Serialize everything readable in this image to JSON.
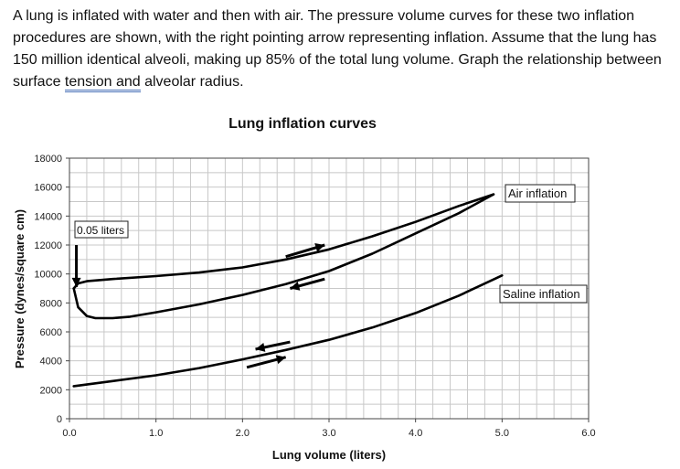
{
  "question": {
    "before": "A lung is inflated with water and then with air. The pressure volume curves for these two inflation procedures are shown, with the right pointing arrow representing inflation. Assume that the lung has 150 million identical alveoli, making up 85% of the total lung volume. Graph the relationship between surface ",
    "underlined": "tension  and",
    "after": " alveolar radius."
  },
  "chart_data": {
    "type": "line",
    "title": "Lung inflation curves",
    "xlabel": "Lung volume (liters)",
    "ylabel": "Pressure (dynes/square cm)",
    "xlim": [
      0,
      6
    ],
    "ylim": [
      0,
      18000
    ],
    "x_ticks": [
      "0.0",
      "1.0",
      "2.0",
      "3.0",
      "4.0",
      "5.0",
      "6.0"
    ],
    "y_ticks": [
      "0",
      "2000",
      "4000",
      "6000",
      "8000",
      "10000",
      "12000",
      "14000",
      "16000",
      "18000"
    ],
    "grid": true,
    "series": [
      {
        "name": "Air inflation",
        "segment": "inflation",
        "points": [
          [
            0.05,
            9000
          ],
          [
            0.1,
            9350
          ],
          [
            0.2,
            9500
          ],
          [
            0.5,
            9650
          ],
          [
            1.0,
            9850
          ],
          [
            1.5,
            10100
          ],
          [
            2.0,
            10450
          ],
          [
            2.5,
            11000
          ],
          [
            3.0,
            11700
          ],
          [
            3.5,
            12600
          ],
          [
            4.0,
            13600
          ],
          [
            4.5,
            14700
          ],
          [
            4.9,
            15500
          ]
        ]
      },
      {
        "name": "Air inflation",
        "segment": "deflation",
        "points": [
          [
            4.9,
            15500
          ],
          [
            4.5,
            14200
          ],
          [
            4.0,
            12800
          ],
          [
            3.5,
            11400
          ],
          [
            3.0,
            10200
          ],
          [
            2.5,
            9300
          ],
          [
            2.0,
            8550
          ],
          [
            1.5,
            7900
          ],
          [
            1.0,
            7350
          ],
          [
            0.7,
            7050
          ],
          [
            0.5,
            6950
          ],
          [
            0.3,
            6950
          ],
          [
            0.2,
            7100
          ],
          [
            0.1,
            7700
          ],
          [
            0.05,
            9000
          ]
        ]
      },
      {
        "name": "Saline inflation",
        "points": [
          [
            0.05,
            2250
          ],
          [
            0.5,
            2600
          ],
          [
            1.0,
            3000
          ],
          [
            1.5,
            3500
          ],
          [
            2.0,
            4100
          ],
          [
            2.5,
            4750
          ],
          [
            3.0,
            5450
          ],
          [
            3.5,
            6300
          ],
          [
            4.0,
            7300
          ],
          [
            4.5,
            8500
          ],
          [
            5.0,
            9900
          ]
        ]
      }
    ],
    "annotations": [
      {
        "text": "0.05 liters"
      }
    ],
    "direction_arrows": [
      {
        "from": [
          2.5,
          11200
        ],
        "to": [
          2.95,
          12000
        ]
      },
      {
        "from": [
          2.95,
          9650
        ],
        "to": [
          2.55,
          9000
        ]
      },
      {
        "from": [
          2.55,
          5300
        ],
        "to": [
          2.15,
          4800
        ]
      },
      {
        "from": [
          2.05,
          3550
        ],
        "to": [
          2.5,
          4250
        ]
      },
      {
        "from": [
          0.08,
          12000
        ],
        "to": [
          0.08,
          9100
        ]
      }
    ]
  }
}
